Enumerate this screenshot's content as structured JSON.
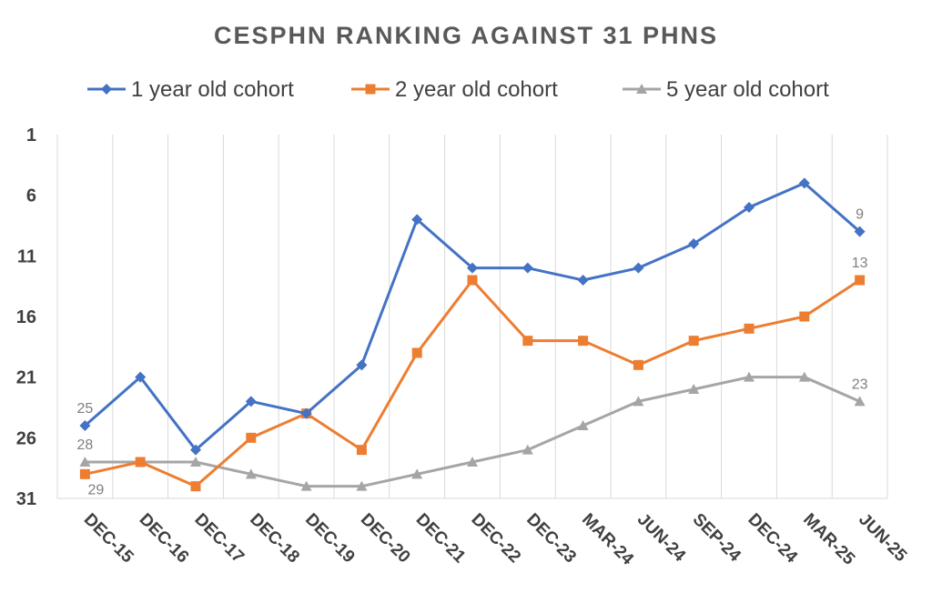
{
  "chart_data": {
    "type": "line",
    "title": "CESPHN RANKING AGAINST 31 PHNS",
    "xlabel": "",
    "ylabel": "",
    "y_axis_reversed": true,
    "ylim": [
      1,
      31
    ],
    "yticks": [
      "1",
      "6",
      "11",
      "16",
      "21",
      "26",
      "31"
    ],
    "categories": [
      "DEC-15",
      "DEC-16",
      "DEC-17",
      "DEC-18",
      "DEC-19",
      "DEC-20",
      "DEC-21",
      "DEC-22",
      "DEC-23",
      "MAR-24",
      "JUN-24",
      "SEP-24",
      "DEC-24",
      "MAR-25",
      "JUN-25"
    ],
    "grid": "vertical",
    "legend_position": "top",
    "series": [
      {
        "name": "1 year old cohort",
        "color": "#4472C4",
        "marker": "diamond",
        "values": [
          25,
          21,
          27,
          23,
          24,
          20,
          8,
          12,
          12,
          13,
          12,
          10,
          7,
          5,
          9
        ]
      },
      {
        "name": "2 year old cohort",
        "color": "#ED7D31",
        "marker": "square",
        "values": [
          29,
          28,
          30,
          26,
          24,
          27,
          19,
          13,
          18,
          18,
          20,
          18,
          17,
          16,
          13
        ]
      },
      {
        "name": "5 year old cohort",
        "color": "#A5A5A5",
        "marker": "triangle",
        "values": [
          28,
          28,
          28,
          29,
          30,
          30,
          29,
          28,
          27,
          25,
          23,
          22,
          21,
          21,
          23
        ]
      }
    ],
    "data_labels": [
      {
        "series": 0,
        "index": 0,
        "text": "25",
        "pos": "above"
      },
      {
        "series": 1,
        "index": 0,
        "text": "29",
        "pos": "below"
      },
      {
        "series": 2,
        "index": 0,
        "text": "28",
        "pos": "above"
      },
      {
        "series": 0,
        "index": 14,
        "text": "9",
        "pos": "above"
      },
      {
        "series": 1,
        "index": 14,
        "text": "13",
        "pos": "above"
      },
      {
        "series": 2,
        "index": 14,
        "text": "23",
        "pos": "above"
      }
    ]
  }
}
